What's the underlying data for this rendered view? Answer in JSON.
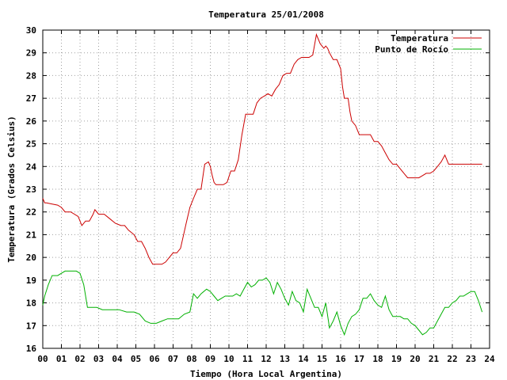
{
  "chart_data": {
    "type": "line",
    "title": "Temperatura 25/01/2008",
    "xlabel": "Tiempo (Hora Local Argentina)",
    "ylabel": "Temperatura (Grados Celsius)",
    "xlim": [
      0,
      24
    ],
    "ylim": [
      16,
      30
    ],
    "x_tick_labels": [
      "00",
      "01",
      "02",
      "03",
      "04",
      "05",
      "06",
      "07",
      "08",
      "09",
      "10",
      "11",
      "12",
      "13",
      "14",
      "15",
      "16",
      "17",
      "18",
      "19",
      "20",
      "21",
      "22",
      "23",
      "24"
    ],
    "y_tick_labels": [
      "16",
      "17",
      "18",
      "19",
      "20",
      "21",
      "22",
      "23",
      "24",
      "25",
      "26",
      "27",
      "28",
      "29",
      "30"
    ],
    "grid": true,
    "legend_position": "top-right",
    "series": [
      {
        "name": "Temperatura",
        "color": "#cc0000",
        "x": [
          0.0,
          0.1,
          0.2,
          0.5,
          0.8,
          1.0,
          1.2,
          1.5,
          1.9,
          2.1,
          2.3,
          2.5,
          2.7,
          2.8,
          3.0,
          3.3,
          3.6,
          3.9,
          4.2,
          4.4,
          4.6,
          4.9,
          5.1,
          5.3,
          5.5,
          5.7,
          5.9,
          6.2,
          6.4,
          6.6,
          6.8,
          7.0,
          7.2,
          7.4,
          7.7,
          7.9,
          8.1,
          8.3,
          8.5,
          8.7,
          8.9,
          9.0,
          9.1,
          9.2,
          9.3,
          9.5,
          9.7,
          9.9,
          10.1,
          10.3,
          10.5,
          10.7,
          10.9,
          11.1,
          11.3,
          11.5,
          11.7,
          11.9,
          12.1,
          12.3,
          12.5,
          12.7,
          12.9,
          13.1,
          13.3,
          13.5,
          13.7,
          13.9,
          14.1,
          14.3,
          14.5,
          14.7,
          14.9,
          15.1,
          15.2,
          15.3,
          15.4,
          15.6,
          15.8,
          16.0,
          16.1,
          16.2,
          16.3,
          16.4,
          16.5,
          16.6,
          16.8,
          17.0,
          17.2,
          17.4,
          17.6,
          17.8,
          18.0,
          18.2,
          18.4,
          18.6,
          18.8,
          19.0,
          19.2,
          19.4,
          19.6,
          19.8,
          20.0,
          20.2,
          20.4,
          20.6,
          20.8,
          21.0,
          21.2,
          21.4,
          21.6,
          21.8,
          22.0,
          22.2,
          22.4,
          22.6,
          22.8,
          23.0,
          23.2,
          23.4,
          23.6
        ],
        "values": [
          22.6,
          22.4,
          22.4,
          22.35,
          22.3,
          22.2,
          22.0,
          22.0,
          21.8,
          21.4,
          21.6,
          21.6,
          21.9,
          22.1,
          21.9,
          21.9,
          21.7,
          21.5,
          21.4,
          21.4,
          21.2,
          21.0,
          20.7,
          20.7,
          20.4,
          20.0,
          19.7,
          19.7,
          19.7,
          19.8,
          20.0,
          20.2,
          20.2,
          20.4,
          21.5,
          22.2,
          22.6,
          23.0,
          23.0,
          24.1,
          24.2,
          24.0,
          23.6,
          23.3,
          23.2,
          23.2,
          23.2,
          23.3,
          23.8,
          23.8,
          24.3,
          25.4,
          26.3,
          26.3,
          26.3,
          26.8,
          27.0,
          27.1,
          27.2,
          27.1,
          27.4,
          27.6,
          28.0,
          28.1,
          28.1,
          28.5,
          28.7,
          28.8,
          28.8,
          28.8,
          28.9,
          29.8,
          29.4,
          29.2,
          29.3,
          29.2,
          29.0,
          28.7,
          28.7,
          28.3,
          27.5,
          27.0,
          27.0,
          27.0,
          26.4,
          26.0,
          25.8,
          25.4,
          25.4,
          25.4,
          25.4,
          25.1,
          25.1,
          24.9,
          24.6,
          24.3,
          24.1,
          24.1,
          23.9,
          23.7,
          23.5,
          23.5,
          23.5,
          23.5,
          23.6,
          23.7,
          23.7,
          23.8,
          24.0,
          24.2,
          24.5,
          24.1,
          24.1,
          24.1,
          24.1,
          24.1,
          24.1,
          24.1,
          24.1,
          24.1,
          24.1
        ],
        "x_end": 23.6
      },
      {
        "name": "Punto de Rocío",
        "color": "#00b000",
        "x": [
          0.0,
          0.1,
          0.3,
          0.5,
          0.8,
          1.0,
          1.2,
          1.5,
          1.8,
          2.0,
          2.2,
          2.4,
          2.6,
          2.9,
          3.2,
          3.5,
          3.8,
          4.1,
          4.5,
          4.9,
          5.2,
          5.5,
          5.8,
          6.1,
          6.4,
          6.7,
          7.0,
          7.3,
          7.6,
          7.9,
          8.1,
          8.3,
          8.5,
          8.8,
          9.0,
          9.2,
          9.4,
          9.6,
          9.8,
          10.0,
          10.2,
          10.4,
          10.6,
          10.8,
          11.0,
          11.2,
          11.4,
          11.6,
          11.8,
          12.0,
          12.2,
          12.4,
          12.6,
          12.8,
          13.0,
          13.2,
          13.4,
          13.6,
          13.8,
          14.0,
          14.2,
          14.4,
          14.6,
          14.8,
          15.0,
          15.2,
          15.4,
          15.6,
          15.8,
          16.0,
          16.2,
          16.4,
          16.6,
          16.8,
          17.0,
          17.2,
          17.4,
          17.6,
          17.8,
          18.0,
          18.2,
          18.4,
          18.6,
          18.8,
          19.0,
          19.2,
          19.4,
          19.6,
          19.8,
          20.0,
          20.2,
          20.4,
          20.6,
          20.8,
          21.0,
          21.2,
          21.4,
          21.6,
          21.8,
          22.0,
          22.2,
          22.4,
          22.6,
          22.8,
          23.0,
          23.2,
          23.4,
          23.6
        ],
        "values": [
          17.9,
          18.3,
          18.8,
          19.2,
          19.2,
          19.3,
          19.4,
          19.4,
          19.4,
          19.3,
          18.8,
          17.8,
          17.8,
          17.8,
          17.7,
          17.7,
          17.7,
          17.7,
          17.6,
          17.6,
          17.5,
          17.2,
          17.1,
          17.1,
          17.2,
          17.3,
          17.3,
          17.3,
          17.5,
          17.6,
          18.4,
          18.2,
          18.4,
          18.6,
          18.5,
          18.3,
          18.1,
          18.2,
          18.3,
          18.3,
          18.3,
          18.4,
          18.3,
          18.6,
          18.9,
          18.7,
          18.8,
          19.0,
          19.0,
          19.1,
          18.9,
          18.4,
          18.9,
          18.6,
          18.2,
          17.9,
          18.5,
          18.1,
          18.0,
          17.6,
          18.6,
          18.2,
          17.8,
          17.8,
          17.4,
          18.0,
          16.9,
          17.2,
          17.6,
          17.0,
          16.6,
          17.1,
          17.4,
          17.5,
          17.7,
          18.2,
          18.2,
          18.4,
          18.1,
          17.9,
          17.8,
          18.3,
          17.7,
          17.4,
          17.4,
          17.4,
          17.3,
          17.3,
          17.1,
          17.0,
          16.8,
          16.6,
          16.7,
          16.9,
          16.9,
          17.2,
          17.5,
          17.8,
          17.8,
          18.0,
          18.1,
          18.3,
          18.3,
          18.4,
          18.5,
          18.5,
          18.1,
          17.6
        ]
      }
    ]
  }
}
